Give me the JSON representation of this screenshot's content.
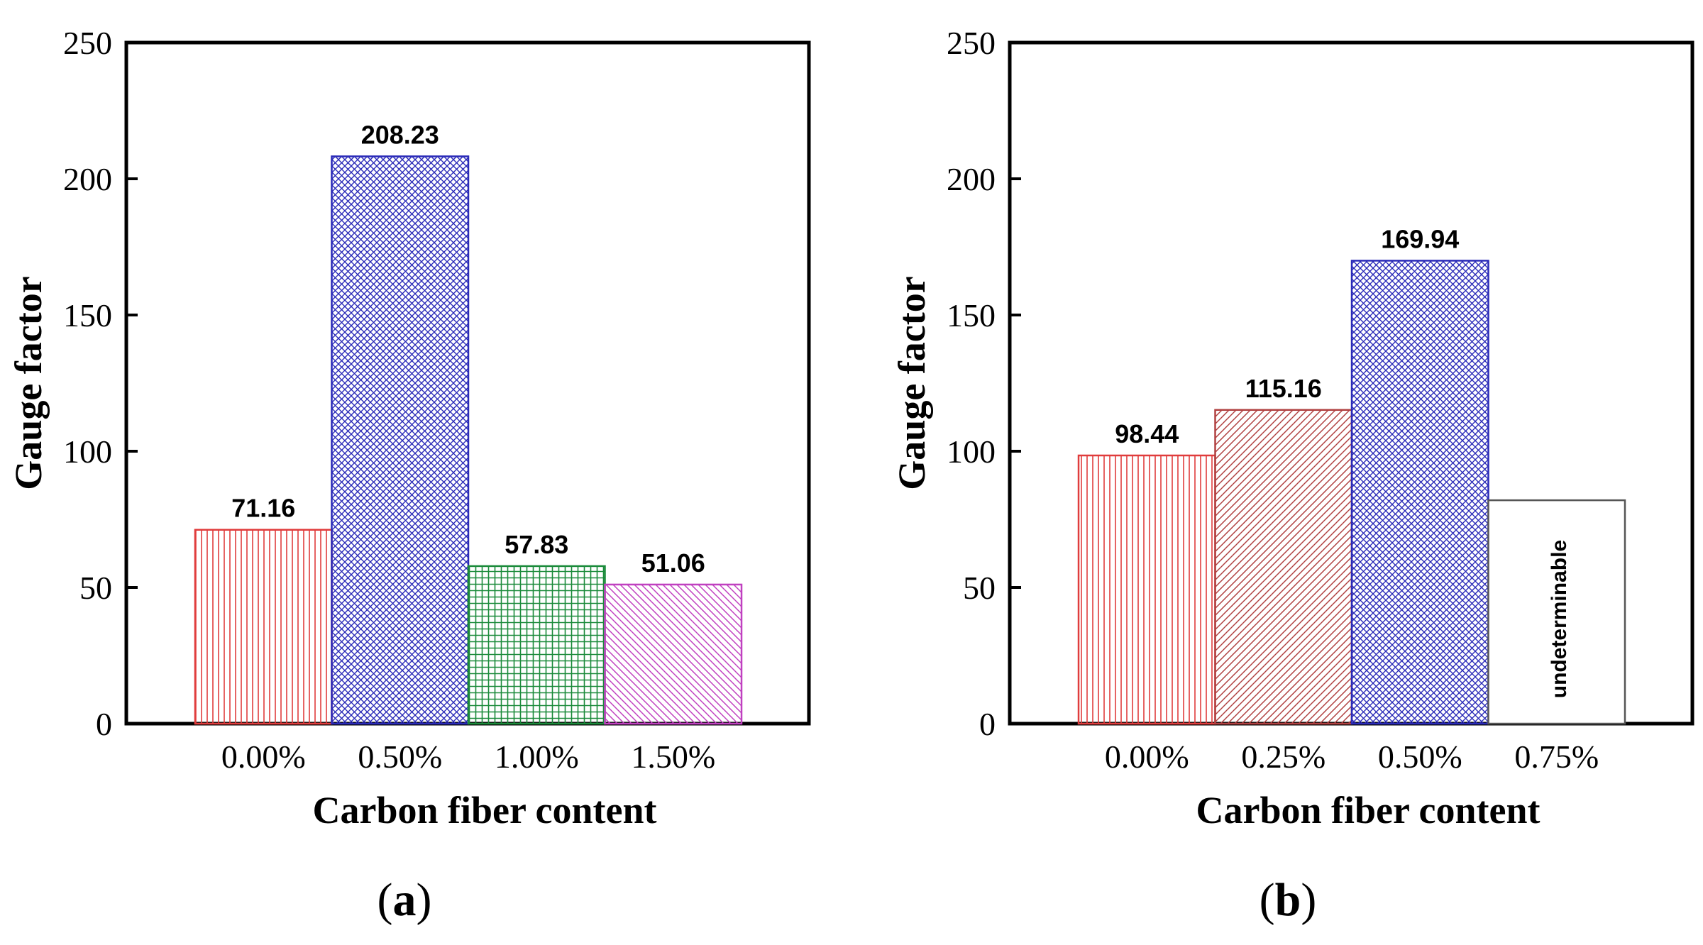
{
  "chart_data": [
    {
      "type": "bar",
      "panel_label_paren_open": "(",
      "panel_label_letter": "a",
      "panel_label_paren_close": ")",
      "xlabel": "Carbon fiber content",
      "ylabel": "Gauge factor",
      "ylim": [
        0,
        250
      ],
      "yticks": [
        "0",
        "50",
        "100",
        "150",
        "200",
        "250"
      ],
      "categories": [
        "0.00%",
        "0.50%",
        "1.00%",
        "1.50%"
      ],
      "values": [
        71.16,
        208.23,
        57.83,
        51.06
      ],
      "data_labels": [
        "71.16",
        "208.23",
        "57.83",
        "51.06"
      ],
      "colors": [
        "#e03c3c",
        "#2a2ab8",
        "#1a8a3a",
        "#c040c0"
      ],
      "patterns": [
        "vertical",
        "crosshatch",
        "grid",
        "diagonal-down"
      ]
    },
    {
      "type": "bar",
      "panel_label_paren_open": "(",
      "panel_label_letter": "b",
      "panel_label_paren_close": ")",
      "xlabel": "Carbon fiber content",
      "ylabel": "Gauge factor",
      "ylim": [
        0,
        250
      ],
      "yticks": [
        "0",
        "50",
        "100",
        "150",
        "200",
        "250"
      ],
      "categories": [
        "0.00%",
        "0.25%",
        "0.50%",
        "0.75%"
      ],
      "values": [
        98.44,
        115.16,
        169.94,
        82
      ],
      "data_labels": [
        "98.44",
        "115.16",
        "169.94",
        "undeterminable"
      ],
      "colors": [
        "#e03c3c",
        "#b04040",
        "#2a2ab8",
        "#444444"
      ],
      "patterns": [
        "vertical",
        "diagonal-up",
        "crosshatch",
        "none"
      ]
    }
  ]
}
